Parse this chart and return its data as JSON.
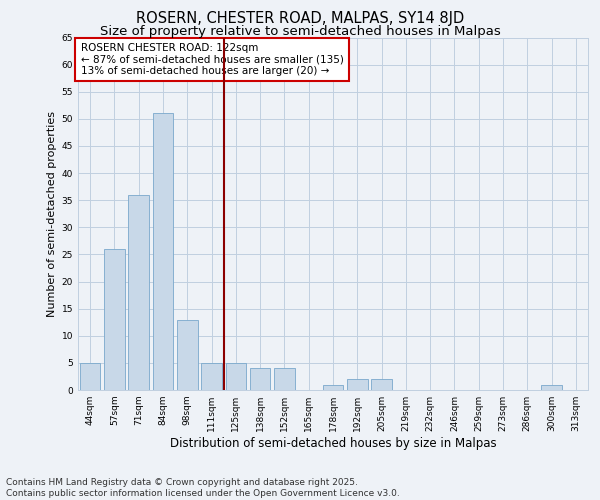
{
  "title": "ROSERN, CHESTER ROAD, MALPAS, SY14 8JD",
  "subtitle": "Size of property relative to semi-detached houses in Malpas",
  "xlabel": "Distribution of semi-detached houses by size in Malpas",
  "ylabel": "Number of semi-detached properties",
  "categories": [
    "44sqm",
    "57sqm",
    "71sqm",
    "84sqm",
    "98sqm",
    "111sqm",
    "125sqm",
    "138sqm",
    "152sqm",
    "165sqm",
    "178sqm",
    "192sqm",
    "205sqm",
    "219sqm",
    "232sqm",
    "246sqm",
    "259sqm",
    "273sqm",
    "286sqm",
    "300sqm",
    "313sqm"
  ],
  "values": [
    5,
    26,
    36,
    51,
    13,
    5,
    5,
    4,
    4,
    0,
    1,
    2,
    2,
    0,
    0,
    0,
    0,
    0,
    0,
    1,
    0
  ],
  "bar_color": "#c8d8e8",
  "bar_edge_color": "#7aa8cc",
  "background_color": "#eef2f7",
  "grid_color": "#c0cfe0",
  "vline_x": 5.5,
  "vline_color": "#8b0000",
  "annotation_text": "ROSERN CHESTER ROAD: 122sqm\n← 87% of semi-detached houses are smaller (135)\n13% of semi-detached houses are larger (20) →",
  "annotation_box_color": "white",
  "annotation_box_edge": "#cc0000",
  "ylim": [
    0,
    65
  ],
  "yticks": [
    0,
    5,
    10,
    15,
    20,
    25,
    30,
    35,
    40,
    45,
    50,
    55,
    60,
    65
  ],
  "footnote": "Contains HM Land Registry data © Crown copyright and database right 2025.\nContains public sector information licensed under the Open Government Licence v3.0.",
  "title_fontsize": 10.5,
  "subtitle_fontsize": 9.5,
  "xlabel_fontsize": 8.5,
  "ylabel_fontsize": 8,
  "tick_fontsize": 6.5,
  "annotation_fontsize": 7.5,
  "footnote_fontsize": 6.5
}
